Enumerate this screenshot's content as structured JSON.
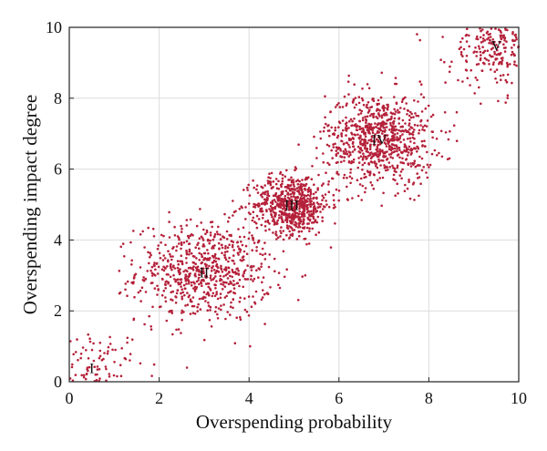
{
  "chart_data": {
    "type": "scatter",
    "title": "",
    "xlabel": "Overspending probability",
    "ylabel": "Overspending impact degree",
    "xlim": [
      0,
      10
    ],
    "ylim": [
      0,
      10
    ],
    "xticks": [
      "0",
      "2",
      "4",
      "6",
      "8",
      "10"
    ],
    "yticks": [
      "0",
      "2",
      "4",
      "6",
      "8",
      "10"
    ],
    "grid": true,
    "marker_color": "#b5213a",
    "clusters": [
      {
        "label": "I",
        "center": [
          0.5,
          0.4
        ],
        "spread": [
          0.6,
          0.55
        ],
        "count": 120
      },
      {
        "label": "II",
        "center": [
          3.0,
          3.1
        ],
        "spread": [
          0.75,
          0.7
        ],
        "count": 700
      },
      {
        "label": "III",
        "center": [
          4.95,
          5.0
        ],
        "spread": [
          0.42,
          0.42
        ],
        "count": 650
      },
      {
        "label": "IV",
        "center": [
          6.9,
          6.85
        ],
        "spread": [
          0.6,
          0.65
        ],
        "count": 800
      },
      {
        "label": "V",
        "center": [
          9.5,
          9.5
        ],
        "spread": [
          0.55,
          0.65
        ],
        "count": 280
      }
    ]
  }
}
